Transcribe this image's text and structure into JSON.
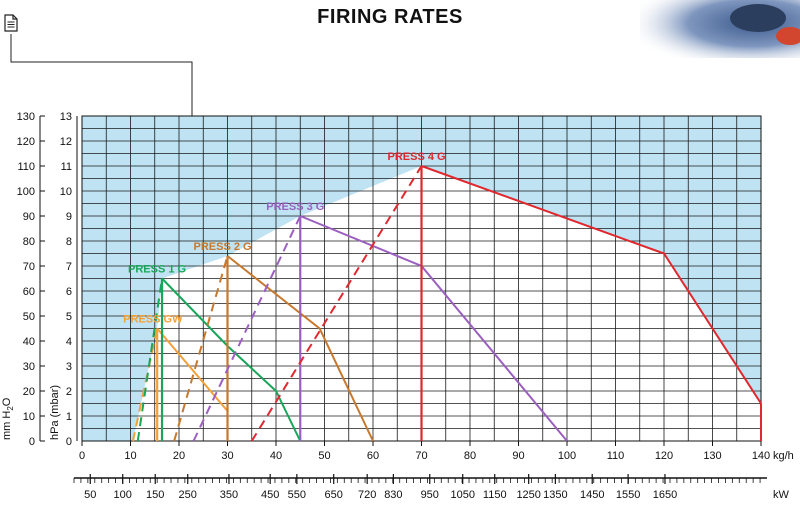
{
  "header": {
    "title": "FIRING RATES"
  },
  "chart_data": {
    "type": "line",
    "x_axis": {
      "label": "kg/h",
      "range": [
        0,
        140
      ],
      "ticks": [
        0,
        10,
        20,
        30,
        40,
        50,
        60,
        70,
        80,
        90,
        100,
        110,
        120,
        130,
        140
      ]
    },
    "x_axis_kw": {
      "label": "kW",
      "ticks": [
        {
          "kg": 1.7,
          "label": "50"
        },
        {
          "kg": 8.4,
          "label": "100"
        },
        {
          "kg": 15.1,
          "label": "150"
        },
        {
          "kg": 21.8,
          "label": "250"
        },
        {
          "kg": 30.3,
          "label": "350"
        },
        {
          "kg": 38.8,
          "label": "450"
        },
        {
          "kg": 44.3,
          "label": "550"
        },
        {
          "kg": 51.9,
          "label": "650"
        },
        {
          "kg": 58.8,
          "label": "720"
        },
        {
          "kg": 64.2,
          "label": "830"
        },
        {
          "kg": 71.7,
          "label": "950"
        },
        {
          "kg": 78.5,
          "label": "1050"
        },
        {
          "kg": 85.1,
          "label": "1150"
        },
        {
          "kg": 92.1,
          "label": "1250"
        },
        {
          "kg": 97.6,
          "label": "1350"
        },
        {
          "kg": 105.2,
          "label": "1450"
        },
        {
          "kg": 112.6,
          "label": "1550"
        },
        {
          "kg": 120.2,
          "label": "1650"
        }
      ]
    },
    "y_axis_hpa": {
      "label": "hPa (mbar)",
      "range": [
        0,
        13
      ],
      "ticks": [
        0,
        1,
        2,
        3,
        4,
        5,
        6,
        7,
        8,
        9,
        10,
        11,
        12,
        13
      ]
    },
    "y_axis_mm": {
      "label": "mm H",
      "label_sub": "2",
      "label_end": "O",
      "ticks": [
        0,
        10,
        20,
        30,
        40,
        50,
        60,
        70,
        80,
        90,
        100,
        110,
        120,
        130
      ]
    },
    "series": [
      {
        "name": "PRESS GW",
        "color": "#f2a03a",
        "ramp": [
          [
            10.5,
            0
          ],
          [
            15.5,
            4.5
          ]
        ],
        "start_x": 15.5,
        "curve": [
          [
            15.5,
            4.5
          ],
          [
            30,
            1.2
          ],
          [
            30,
            0
          ]
        ]
      },
      {
        "name": "PRESS 1 G",
        "color": "#1aa65a",
        "ramp": [
          [
            11.5,
            0
          ],
          [
            16.5,
            6.5
          ]
        ],
        "start_x": 16.5,
        "curve": [
          [
            16.5,
            6.5
          ],
          [
            30,
            3.8
          ],
          [
            40,
            2
          ],
          [
            45,
            0
          ]
        ]
      },
      {
        "name": "PRESS 2 G",
        "color": "#c8782d",
        "ramp": [
          [
            19,
            0
          ],
          [
            30,
            7.4
          ]
        ],
        "start_x": 30,
        "curve": [
          [
            30,
            7.4
          ],
          [
            49,
            4.5
          ],
          [
            60,
            0
          ]
        ]
      },
      {
        "name": "PRESS 3 G",
        "color": "#9b5fc0",
        "ramp": [
          [
            23,
            0
          ],
          [
            45,
            9
          ]
        ],
        "start_x": 45,
        "curve": [
          [
            45,
            9
          ],
          [
            70,
            7
          ],
          [
            100,
            0
          ]
        ]
      },
      {
        "name": "PRESS 4 G",
        "color": "#e0282e",
        "ramp": [
          [
            35,
            0
          ],
          [
            70,
            11
          ]
        ],
        "start_x": 70,
        "curve": [
          [
            70,
            11
          ],
          [
            120,
            7.5
          ],
          [
            140,
            1.5
          ],
          [
            140,
            0
          ]
        ]
      }
    ],
    "grid": true
  }
}
